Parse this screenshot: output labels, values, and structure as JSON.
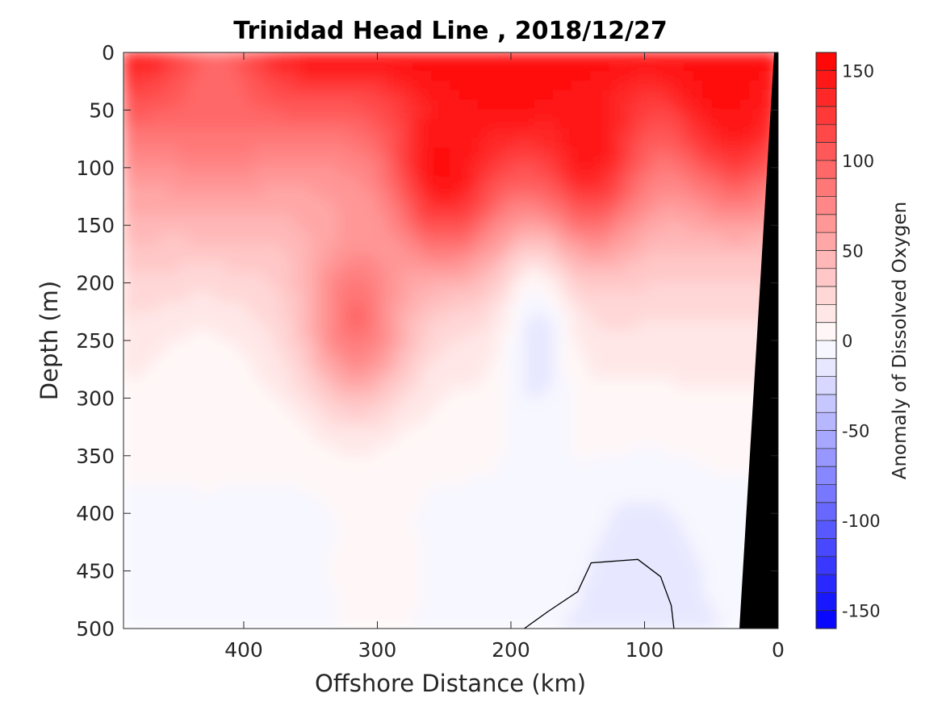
{
  "chart_data": {
    "type": "heatmap",
    "title": "Trinidad Head Line , 2018/12/27",
    "xlabel": "Offshore Distance (km)",
    "ylabel": "Depth (m)",
    "xlim": [
      490,
      0
    ],
    "ylim": [
      0,
      500
    ],
    "x_reversed": true,
    "y_reversed": true,
    "x_ticks": [
      400,
      300,
      200,
      100,
      0
    ],
    "y_ticks": [
      0,
      50,
      100,
      150,
      200,
      250,
      300,
      350,
      400,
      450,
      500
    ],
    "colorbar": {
      "label": "Anomaly of Dissolved Oxygen",
      "range": [
        -160,
        160
      ],
      "ticks": [
        150,
        100,
        50,
        0,
        -50,
        -100,
        -150
      ],
      "levels": 32,
      "colors": {
        "min": "#0000ff",
        "mid": "#ffffff",
        "max": "#ff0000"
      }
    },
    "bathymetry_color": "#000000",
    "zero_contour_color": "#000000",
    "grid": false,
    "features": [
      {
        "x": 250,
        "depth": 100,
        "value": 160
      },
      {
        "x": 140,
        "depth": 80,
        "value": 155
      },
      {
        "x": 30,
        "depth": 50,
        "value": 140
      },
      {
        "x": 40,
        "depth": 5,
        "value": 160
      },
      {
        "x": 420,
        "depth": 20,
        "value": 90
      },
      {
        "x": 315,
        "depth": 230,
        "value": 100
      },
      {
        "x": 100,
        "depth": 450,
        "value": -20
      },
      {
        "x": 430,
        "depth": 300,
        "value": 2
      },
      {
        "x": 300,
        "depth": 470,
        "value": 10
      }
    ]
  }
}
